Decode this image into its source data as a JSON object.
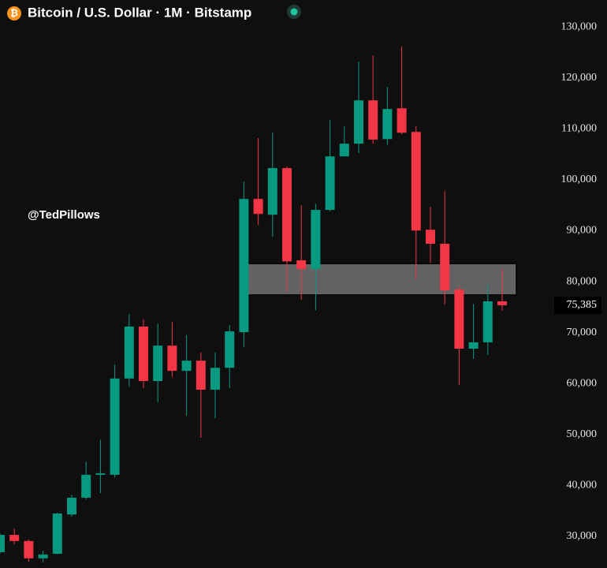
{
  "chart_data": {
    "type": "candlestick",
    "title": "Bitcoin / U.S. Dollar · 1M · Bitstamp",
    "annotation": "@TedPillows",
    "up_color": "#089981",
    "down_color": "#f23645",
    "grid": false,
    "ylim": [
      23800,
      135300
    ],
    "yticks": [
      {
        "value": 30000,
        "label": "30,000"
      },
      {
        "value": 40000,
        "label": "40,000"
      },
      {
        "value": 50000,
        "label": "50,000"
      },
      {
        "value": 60000,
        "label": "60,000"
      },
      {
        "value": 70000,
        "label": "70,000"
      },
      {
        "value": 80000,
        "label": "80,000"
      },
      {
        "value": 90000,
        "label": "90,000"
      },
      {
        "value": 100000,
        "label": "100,000"
      },
      {
        "value": 110000,
        "label": "110,000"
      },
      {
        "value": 120000,
        "label": "120,000"
      },
      {
        "value": 130000,
        "label": "130,000"
      }
    ],
    "last_price": {
      "value": 75385,
      "label": "75,385"
    },
    "highlight_zone": {
      "low": 77400,
      "high": 83550
    },
    "open": [
      26900,
      30300,
      29100,
      25700,
      26600,
      34300,
      37600,
      42100,
      42100,
      61000,
      71200,
      60500,
      67450,
      62500,
      64500,
      58800,
      63100,
      70100,
      96250,
      93150,
      102300,
      84200,
      82500,
      94100,
      104600,
      107100,
      115600,
      108000,
      114050,
      109400,
      90200,
      87450,
      78450,
      66850,
      68100,
      76150
    ],
    "high": [
      30600,
      31550,
      29400,
      27200,
      34650,
      38200,
      44700,
      49000,
      63750,
      73650,
      72600,
      71800,
      72100,
      69500,
      66100,
      66100,
      71500,
      99650,
      108200,
      109250,
      102600,
      95000,
      95300,
      111700,
      110500,
      123200,
      124400,
      118200,
      126150,
      110500,
      94700,
      97800,
      79200,
      75650,
      79550,
      82450
    ],
    "low": [
      26600,
      28450,
      25000,
      24900,
      26450,
      33900,
      37300,
      38500,
      41600,
      59400,
      59100,
      56300,
      61300,
      53700,
      49350,
      53200,
      59100,
      67150,
      91150,
      88800,
      78000,
      76450,
      74400,
      93800,
      105400,
      105250,
      107100,
      106900,
      108950,
      80450,
      83700,
      75500,
      59700,
      64850,
      65600,
      74300
    ],
    "close": [
      30300,
      29100,
      25700,
      26450,
      34500,
      37600,
      42100,
      42400,
      61000,
      71200,
      60500,
      67450,
      62500,
      64500,
      58800,
      63100,
      70250,
      96250,
      93300,
      102300,
      84000,
      82500,
      94100,
      104600,
      107100,
      115600,
      107900,
      113900,
      109250,
      90050,
      87450,
      78300,
      66850,
      68100,
      76150,
      75385
    ]
  }
}
